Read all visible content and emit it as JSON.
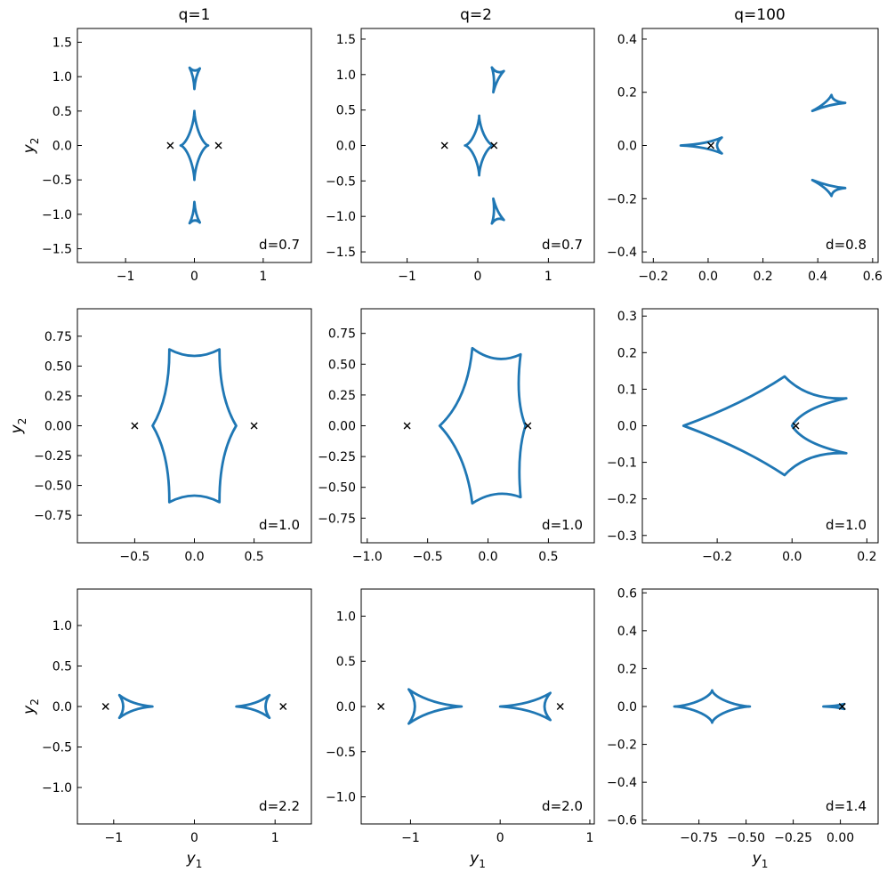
{
  "figure": {
    "column_titles": [
      "q=1",
      "q=2",
      "q=100"
    ],
    "xlabel_main": "y",
    "xlabel_sub": "1",
    "ylabel_main": "y",
    "ylabel_sub": "2"
  },
  "colors": {
    "curve": "#1f77b4",
    "marker": "#000000",
    "axes": "#000000"
  },
  "chart_data": [
    {
      "type": "line",
      "row": 0,
      "col": 0,
      "q": 1,
      "d_label": "d=0.7",
      "xlim": [
        -1.7,
        1.7
      ],
      "ylim": [
        -1.7,
        1.7
      ],
      "xticks": [
        -1,
        0,
        1
      ],
      "xticklabels": [
        "−1",
        "0",
        "1"
      ],
      "yticks": [
        -1.5,
        -1.0,
        -0.5,
        0.0,
        0.5,
        1.0,
        1.5
      ],
      "yticklabels": [
        "−1.5",
        "−1.0",
        "−0.5",
        "0.0",
        "0.5",
        "1.0",
        "1.5"
      ],
      "xlabel": "",
      "ylabel": "y2",
      "lenses": [
        [
          -0.35,
          0
        ],
        [
          0.35,
          0
        ]
      ],
      "caustics": [
        {
          "shape": "astroid",
          "center": [
            0,
            0
          ],
          "rx": 0.2,
          "ry": 0.5
        },
        {
          "shape": "triangle",
          "points": [
            [
              -0.07,
              1.13
            ],
            [
              0.08,
              1.12
            ],
            [
              0.0,
              0.82
            ]
          ]
        },
        {
          "shape": "triangle",
          "points": [
            [
              -0.07,
              -1.13
            ],
            [
              0.08,
              -1.12
            ],
            [
              0.0,
              -0.82
            ]
          ]
        }
      ]
    },
    {
      "type": "line",
      "row": 0,
      "col": 1,
      "q": 2,
      "d_label": "d=0.7",
      "xlim": [
        -1.65,
        1.65
      ],
      "ylim": [
        -1.65,
        1.65
      ],
      "xticks": [
        -1,
        0,
        1
      ],
      "xticklabels": [
        "−1",
        "0",
        "1"
      ],
      "yticks": [
        -1.5,
        -1.0,
        -0.5,
        0.0,
        0.5,
        1.0,
        1.5
      ],
      "yticklabels": [
        "−1.5",
        "−1.0",
        "−0.5",
        "0.0",
        "0.5",
        "1.0",
        "1.5"
      ],
      "xlabel": "",
      "ylabel": "",
      "lenses": [
        [
          -0.47,
          0
        ],
        [
          0.23,
          0
        ]
      ],
      "caustics": [
        {
          "shape": "astroid",
          "center": [
            0.02,
            0
          ],
          "rx": 0.2,
          "ry": 0.42
        },
        {
          "shape": "triangle",
          "points": [
            [
              0.2,
              1.1
            ],
            [
              0.37,
              1.05
            ],
            [
              0.22,
              0.75
            ]
          ]
        },
        {
          "shape": "triangle",
          "points": [
            [
              0.2,
              -1.1
            ],
            [
              0.37,
              -1.05
            ],
            [
              0.22,
              -0.75
            ]
          ]
        }
      ]
    },
    {
      "type": "line",
      "row": 0,
      "col": 2,
      "q": 100,
      "d_label": "d=0.8",
      "xlim": [
        -0.24,
        0.62
      ],
      "ylim": [
        -0.44,
        0.44
      ],
      "xticks": [
        -0.2,
        0.0,
        0.2,
        0.4,
        0.6
      ],
      "xticklabels": [
        "−0.2",
        "0.0",
        "0.2",
        "0.4",
        "0.6"
      ],
      "yticks": [
        -0.4,
        -0.2,
        0.0,
        0.2,
        0.4
      ],
      "yticklabels": [
        "−0.4",
        "−0.2",
        "0.0",
        "0.2",
        "0.4"
      ],
      "xlabel": "",
      "ylabel": "",
      "lenses": [
        [
          0.01,
          0
        ]
      ],
      "caustics": [
        {
          "shape": "triangle",
          "points": [
            [
              -0.1,
              0.0
            ],
            [
              0.05,
              0.03
            ],
            [
              0.05,
              -0.03
            ]
          ]
        },
        {
          "shape": "triangle",
          "points": [
            [
              0.38,
              0.13
            ],
            [
              0.45,
              0.19
            ],
            [
              0.5,
              0.16
            ]
          ]
        },
        {
          "shape": "triangle",
          "points": [
            [
              0.38,
              -0.13
            ],
            [
              0.45,
              -0.19
            ],
            [
              0.5,
              -0.16
            ]
          ]
        }
      ]
    },
    {
      "type": "line",
      "row": 1,
      "col": 0,
      "q": 1,
      "d_label": "d=1.0",
      "xlim": [
        -0.98,
        0.98
      ],
      "ylim": [
        -0.98,
        0.98
      ],
      "xticks": [
        -0.5,
        0.0,
        0.5
      ],
      "xticklabels": [
        "−0.5",
        "0.0",
        "0.5"
      ],
      "yticks": [
        -0.75,
        -0.5,
        -0.25,
        0.0,
        0.25,
        0.5,
        0.75
      ],
      "yticklabels": [
        "−0.75",
        "−0.50",
        "−0.25",
        "0.00",
        "0.25",
        "0.50",
        "0.75"
      ],
      "xlabel": "",
      "ylabel": "y2",
      "lenses": [
        [
          -0.5,
          0
        ],
        [
          0.5,
          0
        ]
      ],
      "caustics": [
        {
          "shape": "hexagon",
          "points": [
            [
              0.21,
              0.64
            ],
            [
              0.35,
              0.0
            ],
            [
              0.21,
              -0.64
            ],
            [
              -0.21,
              -0.64
            ],
            [
              -0.35,
              0.0
            ],
            [
              -0.21,
              0.64
            ]
          ],
          "insets": [
            0.055,
            0.055,
            0.055,
            0.055,
            0.055,
            0.055
          ]
        }
      ]
    },
    {
      "type": "line",
      "row": 1,
      "col": 1,
      "q": 2,
      "d_label": "d=1.0",
      "xlim": [
        -1.05,
        0.88
      ],
      "ylim": [
        -0.95,
        0.95
      ],
      "xticks": [
        -1.0,
        -0.5,
        0.0,
        0.5
      ],
      "xticklabels": [
        "−1.0",
        "−0.5",
        "0.0",
        "0.5"
      ],
      "yticks": [
        -0.75,
        -0.5,
        -0.25,
        0.0,
        0.25,
        0.5,
        0.75
      ],
      "yticklabels": [
        "−0.75",
        "−0.50",
        "−0.25",
        "0.00",
        "0.25",
        "0.50",
        "0.75"
      ],
      "xlabel": "",
      "ylabel": "",
      "lenses": [
        [
          -0.67,
          0
        ],
        [
          0.33,
          0
        ]
      ],
      "caustics": [
        {
          "shape": "hexagon",
          "points": [
            [
              0.27,
              0.58
            ],
            [
              0.31,
              0.0
            ],
            [
              0.27,
              -0.58
            ],
            [
              -0.13,
              -0.63
            ],
            [
              -0.4,
              0.0
            ],
            [
              -0.13,
              0.63
            ]
          ],
          "insets": [
            0.05,
            0.04,
            0.05,
            0.06,
            0.07,
            0.06
          ]
        }
      ]
    },
    {
      "type": "line",
      "row": 1,
      "col": 2,
      "q": 100,
      "d_label": "d=1.0",
      "xlim": [
        -0.4,
        0.23
      ],
      "ylim": [
        -0.32,
        0.32
      ],
      "xticks": [
        -0.2,
        0.0,
        0.2
      ],
      "xticklabels": [
        "−0.2",
        "0.0",
        "0.2"
      ],
      "yticks": [
        -0.3,
        -0.2,
        -0.1,
        0.0,
        0.1,
        0.2,
        0.3
      ],
      "yticklabels": [
        "−0.3",
        "−0.2",
        "−0.1",
        "0.0",
        "0.1",
        "0.2",
        "0.3"
      ],
      "xlabel": "",
      "ylabel": "",
      "lenses": [
        [
          0.01,
          0
        ]
      ],
      "caustics": [
        {
          "shape": "quad",
          "points": [
            [
              -0.29,
              0.0
            ],
            [
              -0.02,
              0.135
            ],
            [
              0.145,
              0.075
            ],
            [
              0.0,
              0.0
            ],
            [
              0.145,
              -0.075
            ],
            [
              -0.02,
              -0.135
            ]
          ]
        }
      ]
    },
    {
      "type": "line",
      "row": 2,
      "col": 0,
      "q": 1,
      "d_label": "d=2.2",
      "xlim": [
        -1.45,
        1.45
      ],
      "ylim": [
        -1.45,
        1.45
      ],
      "xticks": [
        -1,
        0,
        1
      ],
      "xticklabels": [
        "−1",
        "0",
        "1"
      ],
      "yticks": [
        -1.0,
        -0.5,
        0.0,
        0.5,
        1.0
      ],
      "yticklabels": [
        "−1.0",
        "−0.5",
        "0.0",
        "0.5",
        "1.0"
      ],
      "xlabel": "y1",
      "ylabel": "y2",
      "lenses": [
        [
          -1.1,
          0
        ],
        [
          1.1,
          0
        ]
      ],
      "caustics": [
        {
          "shape": "triangle",
          "points": [
            [
              -0.93,
              0.14
            ],
            [
              -0.93,
              -0.14
            ],
            [
              -0.52,
              0.0
            ]
          ]
        },
        {
          "shape": "triangle",
          "points": [
            [
              0.93,
              0.14
            ],
            [
              0.93,
              -0.14
            ],
            [
              0.52,
              0.0
            ]
          ]
        }
      ]
    },
    {
      "type": "line",
      "row": 2,
      "col": 1,
      "q": 2,
      "d_label": "d=2.0",
      "xlim": [
        -1.55,
        1.05
      ],
      "ylim": [
        -1.3,
        1.3
      ],
      "xticks": [
        -1,
        0,
        1
      ],
      "xticklabels": [
        "−1",
        "0",
        "1"
      ],
      "yticks": [
        -1.0,
        -0.5,
        0.0,
        0.5,
        1.0
      ],
      "yticklabels": [
        "−1.0",
        "−0.5",
        "0.0",
        "0.5",
        "1.0"
      ],
      "xlabel": "y1",
      "ylabel": "",
      "lenses": [
        [
          -1.33,
          0
        ],
        [
          0.67,
          0
        ]
      ],
      "caustics": [
        {
          "shape": "triangle",
          "points": [
            [
              -1.02,
              0.19
            ],
            [
              -1.02,
              -0.19
            ],
            [
              -0.43,
              0.0
            ]
          ]
        },
        {
          "shape": "triangle",
          "points": [
            [
              0.56,
              0.15
            ],
            [
              0.56,
              -0.15
            ],
            [
              0.0,
              0.0
            ]
          ]
        }
      ]
    },
    {
      "type": "line",
      "row": 2,
      "col": 2,
      "q": 100,
      "d_label": "d=1.4",
      "xlim": [
        -1.05,
        0.2
      ],
      "ylim": [
        -0.62,
        0.62
      ],
      "xticks": [
        -0.75,
        -0.5,
        -0.25,
        0.0
      ],
      "xticklabels": [
        "−0.75",
        "−0.50",
        "−0.25",
        "0.00"
      ],
      "yticks": [
        -0.6,
        -0.4,
        -0.2,
        0.0,
        0.2,
        0.4,
        0.6
      ],
      "yticklabels": [
        "−0.6",
        "−0.4",
        "−0.2",
        "0.0",
        "0.2",
        "0.4",
        "0.6"
      ],
      "xlabel": "y1",
      "ylabel": "",
      "lenses": [
        [
          0.01,
          0
        ]
      ],
      "caustics": [
        {
          "shape": "astroid",
          "center": [
            -0.68,
            0
          ],
          "rx": 0.2,
          "ry": 0.085
        },
        {
          "shape": "triangle",
          "points": [
            [
              -0.09,
              0.0
            ],
            [
              0.02,
              0.013
            ],
            [
              0.02,
              -0.013
            ]
          ]
        }
      ]
    }
  ]
}
